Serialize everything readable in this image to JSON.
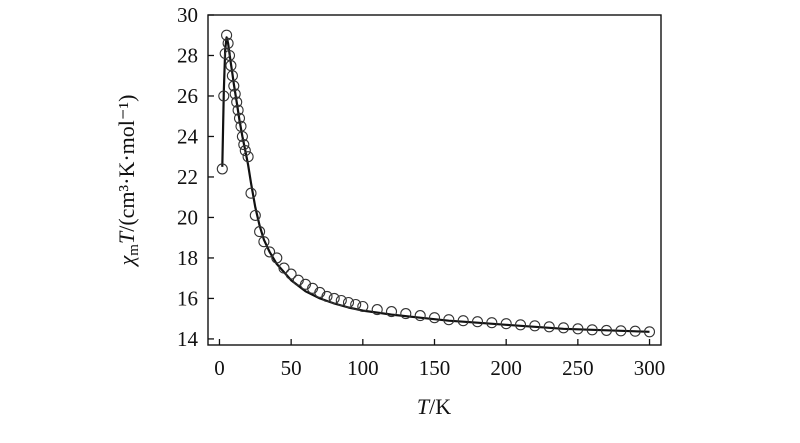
{
  "chart_data": {
    "type": "scatter",
    "xlabel": {
      "italic": "T",
      "rest": "/K"
    },
    "ylabel": {
      "chi": "χ",
      "sub": "m",
      "italic": "T",
      "rest": "/(cm³·K·mol⁻¹)"
    },
    "xlim": [
      -8,
      308
    ],
    "ylim": [
      13.7,
      30
    ],
    "xticks": [
      0,
      50,
      100,
      150,
      200,
      250,
      300
    ],
    "yticks": [
      14,
      16,
      18,
      20,
      22,
      24,
      26,
      28,
      30
    ],
    "grid": false,
    "legend": "none",
    "series": [
      {
        "style": "open-circles",
        "x": [
          2,
          3,
          4,
          5,
          6,
          7,
          8,
          9,
          10,
          11,
          12,
          13,
          14,
          15,
          16,
          17,
          18,
          20,
          22,
          25,
          28,
          31,
          35,
          40,
          45,
          50,
          55,
          60,
          65,
          70,
          75,
          80,
          85,
          90,
          95,
          100,
          110,
          120,
          130,
          140,
          150,
          160,
          170,
          180,
          190,
          200,
          210,
          220,
          230,
          240,
          250,
          260,
          270,
          280,
          290,
          300
        ],
        "y": [
          22.4,
          26.0,
          28.1,
          29.0,
          28.6,
          28.0,
          27.5,
          27.0,
          26.5,
          26.1,
          25.7,
          25.3,
          24.9,
          24.5,
          24.0,
          23.6,
          23.3,
          23.0,
          21.2,
          20.1,
          19.3,
          18.8,
          18.3,
          18.0,
          17.5,
          17.2,
          16.9,
          16.7,
          16.5,
          16.3,
          16.1,
          16.0,
          15.9,
          15.8,
          15.7,
          15.6,
          15.45,
          15.35,
          15.25,
          15.15,
          15.05,
          14.95,
          14.9,
          14.85,
          14.8,
          14.75,
          14.7,
          14.65,
          14.6,
          14.55,
          14.5,
          14.45,
          14.42,
          14.4,
          14.38,
          14.35
        ]
      },
      {
        "style": "solid-line",
        "x": [
          2,
          3,
          4,
          5,
          6,
          7,
          8,
          9,
          10,
          12,
          14,
          16,
          18,
          20,
          22,
          25,
          28,
          31,
          35,
          40,
          45,
          50,
          60,
          70,
          80,
          90,
          100,
          120,
          140,
          160,
          180,
          200,
          220,
          240,
          260,
          280,
          300
        ],
        "y": [
          22.5,
          26.2,
          28.3,
          28.9,
          28.6,
          28.1,
          27.6,
          27.1,
          26.6,
          25.7,
          24.8,
          24.0,
          23.3,
          22.6,
          21.7,
          20.5,
          19.6,
          18.9,
          18.3,
          17.7,
          17.3,
          16.9,
          16.35,
          16.0,
          15.75,
          15.55,
          15.4,
          15.2,
          15.05,
          14.9,
          14.8,
          14.7,
          14.6,
          14.5,
          14.45,
          14.4,
          14.35
        ]
      }
    ]
  }
}
